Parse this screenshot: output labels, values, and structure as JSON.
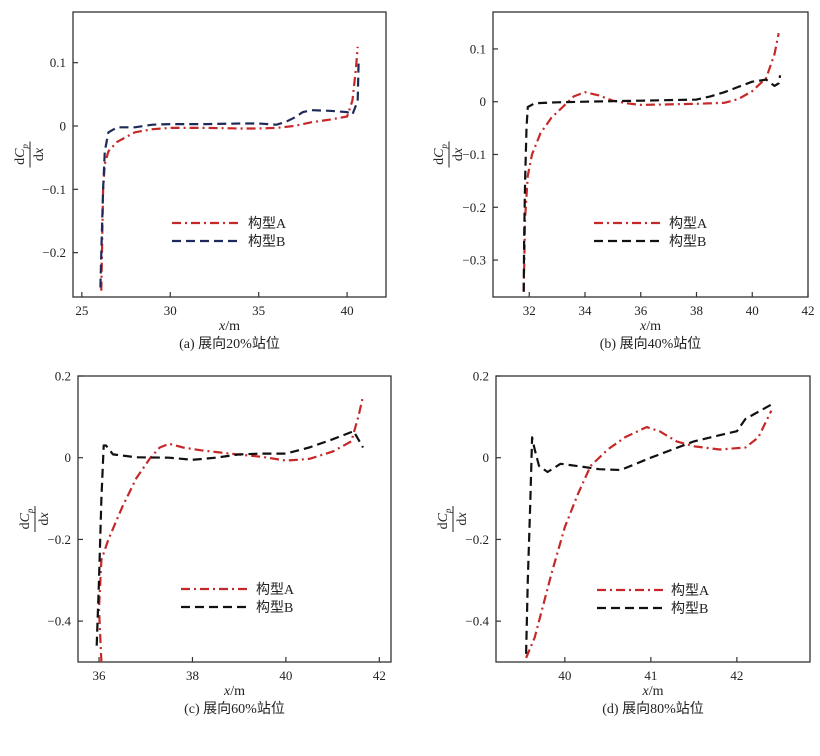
{
  "chart_data": [
    {
      "type": "line",
      "caption": "(a) 展向20%站位",
      "xlabel": "x/m",
      "ylabel": "dCp/dx",
      "xlim": [
        24.5,
        42.2
      ],
      "ylim": [
        -0.27,
        0.18
      ],
      "xticks": [
        25,
        30,
        35,
        40
      ],
      "xtick_labels": [
        "25",
        "30",
        "35",
        "40"
      ],
      "yticks": [
        0.1,
        0,
        -0.1,
        -0.2
      ],
      "ytick_labels": [
        "0.1",
        "0",
        "−0.1",
        "−0.2"
      ],
      "legend": {
        "placement": "lower-center",
        "entries": [
          "构型A",
          "构型B"
        ]
      },
      "series": [
        {
          "name": "构型A",
          "color": "#c62828",
          "style": "dashdot",
          "x": [
            26.1,
            26.15,
            26.2,
            26.3,
            26.5,
            27.0,
            28.0,
            29.0,
            30.0,
            32.0,
            34.0,
            35.0,
            36.0,
            37.0,
            38.0,
            39.0,
            40.0,
            40.3,
            40.5,
            40.6
          ],
          "y": [
            -0.26,
            -0.18,
            -0.1,
            -0.06,
            -0.04,
            -0.025,
            -0.01,
            -0.005,
            -0.003,
            -0.003,
            -0.004,
            -0.004,
            -0.003,
            0.0,
            0.006,
            0.01,
            0.015,
            0.04,
            0.09,
            0.125
          ]
        },
        {
          "name": "构型B",
          "color": "#1f2a5a",
          "style": "dashed",
          "x": [
            26.05,
            26.1,
            26.2,
            26.3,
            26.5,
            27.0,
            28.0,
            29.0,
            30.0,
            32.0,
            34.0,
            35.0,
            36.0,
            36.5,
            37.0,
            37.5,
            38.0,
            39.0,
            40.0,
            40.3,
            40.6,
            40.65
          ],
          "y": [
            -0.255,
            -0.2,
            -0.1,
            -0.04,
            -0.01,
            -0.002,
            -0.002,
            0.002,
            0.003,
            0.003,
            0.004,
            0.004,
            0.002,
            0.006,
            0.013,
            0.022,
            0.025,
            0.024,
            0.022,
            0.018,
            0.04,
            0.1
          ]
        }
      ]
    },
    {
      "type": "line",
      "caption": "(b) 展向40%站位",
      "xlabel": "x/m",
      "ylabel": "dCp/dx",
      "xlim": [
        30.7,
        42.0
      ],
      "ylim": [
        -0.37,
        0.17
      ],
      "xticks": [
        32,
        34,
        36,
        38,
        40,
        42
      ],
      "xtick_labels": [
        "32",
        "34",
        "36",
        "38",
        "40",
        "42"
      ],
      "yticks": [
        0.1,
        0,
        -0.1,
        -0.2,
        -0.3
      ],
      "ytick_labels": [
        "0.1",
        "0",
        "−0.1",
        "−0.2",
        "−0.3"
      ],
      "legend": {
        "placement": "lower-center",
        "entries": [
          "构型A",
          "构型B"
        ]
      },
      "series": [
        {
          "name": "构型A",
          "color": "#c62828",
          "style": "dashdot",
          "x": [
            31.8,
            31.85,
            31.95,
            32.1,
            32.4,
            32.8,
            33.2,
            33.6,
            34.0,
            34.5,
            35.0,
            35.5,
            36.0,
            37.0,
            38.0,
            39.0,
            39.5,
            40.0,
            40.5,
            40.8,
            40.95
          ],
          "y": [
            -0.36,
            -0.22,
            -0.14,
            -0.1,
            -0.06,
            -0.03,
            -0.01,
            0.01,
            0.018,
            0.012,
            0.002,
            -0.003,
            -0.006,
            -0.005,
            -0.004,
            -0.002,
            0.005,
            0.02,
            0.045,
            0.09,
            0.13
          ]
        },
        {
          "name": "构型B",
          "color": "#111111",
          "style": "dashed",
          "x": [
            31.8,
            31.82,
            31.85,
            31.9,
            31.95,
            32.2,
            33.0,
            34.0,
            35.0,
            36.0,
            37.0,
            38.0,
            38.5,
            39.0,
            39.5,
            40.0,
            40.5,
            40.8,
            40.95,
            41.0
          ],
          "y": [
            -0.36,
            -0.25,
            -0.15,
            -0.05,
            -0.01,
            -0.003,
            -0.001,
            0.0,
            0.001,
            0.002,
            0.003,
            0.004,
            0.01,
            0.018,
            0.028,
            0.038,
            0.042,
            0.03,
            0.035,
            0.05
          ]
        }
      ]
    },
    {
      "type": "line",
      "caption": "(c) 展向60%站位",
      "xlabel": "x/m",
      "ylabel": "dCp/dx",
      "xlim": [
        35.55,
        42.25
      ],
      "ylim": [
        -0.5,
        0.2
      ],
      "xticks": [
        36,
        38,
        40,
        42
      ],
      "xtick_labels": [
        "36",
        "38",
        "40",
        "42"
      ],
      "yticks": [
        0.2,
        0,
        -0.2,
        -0.4
      ],
      "ytick_labels": [
        "0.2",
        "0",
        "−0.2",
        "−0.4"
      ],
      "legend": {
        "placement": "lower-center",
        "entries": [
          "构型A",
          "构型B"
        ]
      },
      "series": [
        {
          "name": "构型A",
          "color": "#c62828",
          "style": "dashdot",
          "x": [
            36.05,
            36.0,
            36.05,
            36.2,
            36.5,
            36.8,
            37.1,
            37.3,
            37.5,
            37.8,
            38.2,
            38.8,
            39.5,
            40.0,
            40.5,
            41.0,
            41.4,
            41.55,
            41.65
          ],
          "y": [
            -0.5,
            -0.37,
            -0.25,
            -0.2,
            -0.12,
            -0.05,
            0.0,
            0.025,
            0.034,
            0.025,
            0.018,
            0.01,
            0.002,
            -0.007,
            -0.003,
            0.015,
            0.04,
            0.1,
            0.15
          ]
        },
        {
          "name": "构型B",
          "color": "#111111",
          "style": "dashed",
          "x": [
            35.95,
            36.0,
            36.05,
            36.1,
            36.15,
            36.3,
            36.8,
            37.5,
            38.0,
            38.5,
            39.0,
            39.5,
            40.0,
            40.5,
            41.0,
            41.45,
            41.55,
            41.65
          ],
          "y": [
            -0.46,
            -0.3,
            -0.1,
            0.03,
            0.03,
            0.008,
            0.001,
            0.0,
            -0.005,
            0.0,
            0.008,
            0.01,
            0.01,
            0.025,
            0.045,
            0.065,
            0.045,
            0.025
          ]
        }
      ]
    },
    {
      "type": "line",
      "caption": "(d) 展向80%站位",
      "xlabel": "x/m",
      "ylabel": "dCp/dx",
      "xlim": [
        39.2,
        42.85
      ],
      "ylim": [
        -0.5,
        0.2
      ],
      "xticks": [
        40,
        41,
        42
      ],
      "xtick_labels": [
        "40",
        "41",
        "42"
      ],
      "yticks": [
        0.2,
        0,
        -0.2,
        -0.4
      ],
      "ytick_labels": [
        "0.2",
        "0",
        "−0.2",
        "−0.4"
      ],
      "legend": {
        "placement": "lower-center",
        "entries": [
          "构型A",
          "构型B"
        ]
      },
      "series": [
        {
          "name": "构型A",
          "color": "#c62828",
          "style": "dashdot",
          "x": [
            39.55,
            39.65,
            39.75,
            39.85,
            40.0,
            40.15,
            40.3,
            40.5,
            40.7,
            40.95,
            41.1,
            41.3,
            41.5,
            41.8,
            42.1,
            42.25,
            42.4
          ],
          "y": [
            -0.49,
            -0.44,
            -0.36,
            -0.28,
            -0.17,
            -0.09,
            -0.02,
            0.02,
            0.05,
            0.075,
            0.065,
            0.04,
            0.028,
            0.02,
            0.025,
            0.05,
            0.115
          ]
        },
        {
          "name": "构型B",
          "color": "#111111",
          "style": "dashed",
          "x": [
            39.55,
            39.57,
            39.6,
            39.62,
            39.65,
            39.7,
            39.8,
            39.95,
            40.2,
            40.4,
            40.65,
            41.0,
            41.5,
            41.8,
            42.0,
            42.1,
            42.4
          ],
          "y": [
            -0.48,
            -0.3,
            -0.1,
            0.05,
            0.02,
            -0.02,
            -0.035,
            -0.015,
            -0.022,
            -0.028,
            -0.03,
            0.0,
            0.04,
            0.055,
            0.065,
            0.095,
            0.13
          ]
        }
      ]
    }
  ]
}
